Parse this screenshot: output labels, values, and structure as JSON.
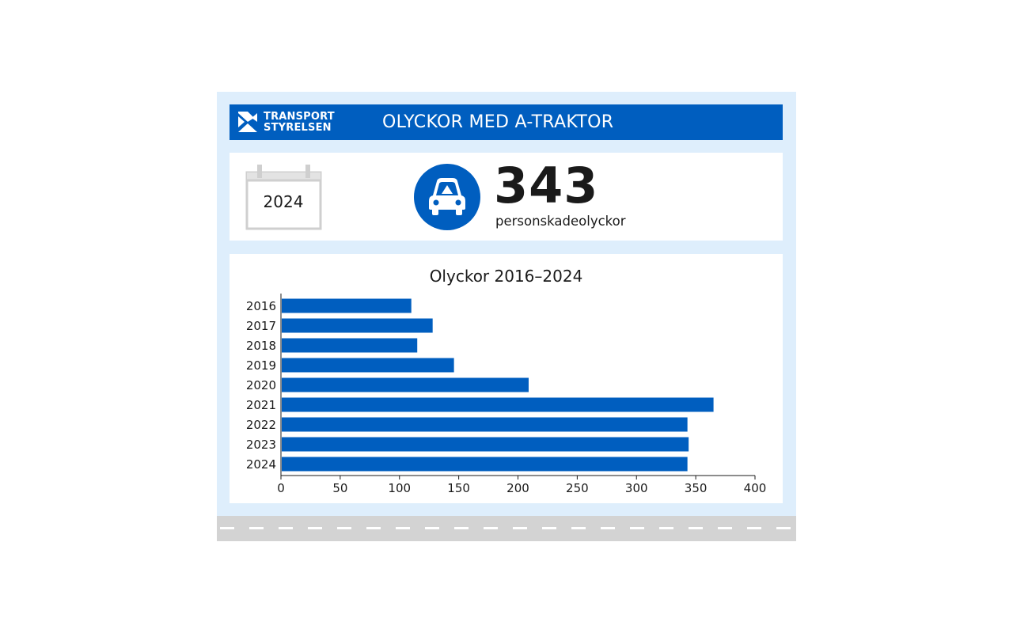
{
  "header": {
    "logo_line1": "TRANSPORT",
    "logo_line2": "STYRELSEN",
    "title": "OLYCKOR MED A-TRAKTOR"
  },
  "kpi": {
    "year": "2024",
    "icon": "car-icon",
    "value": "343",
    "label": "personskadeolyckor"
  },
  "colors": {
    "brand_blue": "#005ebf",
    "card_bg": "#deeefc",
    "road_gray": "#d3d3d3"
  },
  "chart_data": {
    "type": "bar",
    "orientation": "horizontal",
    "title": "Olyckor 2016–2024",
    "categories": [
      "2016",
      "2017",
      "2018",
      "2019",
      "2020",
      "2021",
      "2022",
      "2023",
      "2024"
    ],
    "values": [
      110,
      128,
      115,
      146,
      209,
      365,
      343,
      344,
      343
    ],
    "xlim": [
      0,
      400
    ],
    "xticks": [
      0,
      50,
      100,
      150,
      200,
      250,
      300,
      350,
      400
    ],
    "grid": false,
    "legend": "none"
  }
}
